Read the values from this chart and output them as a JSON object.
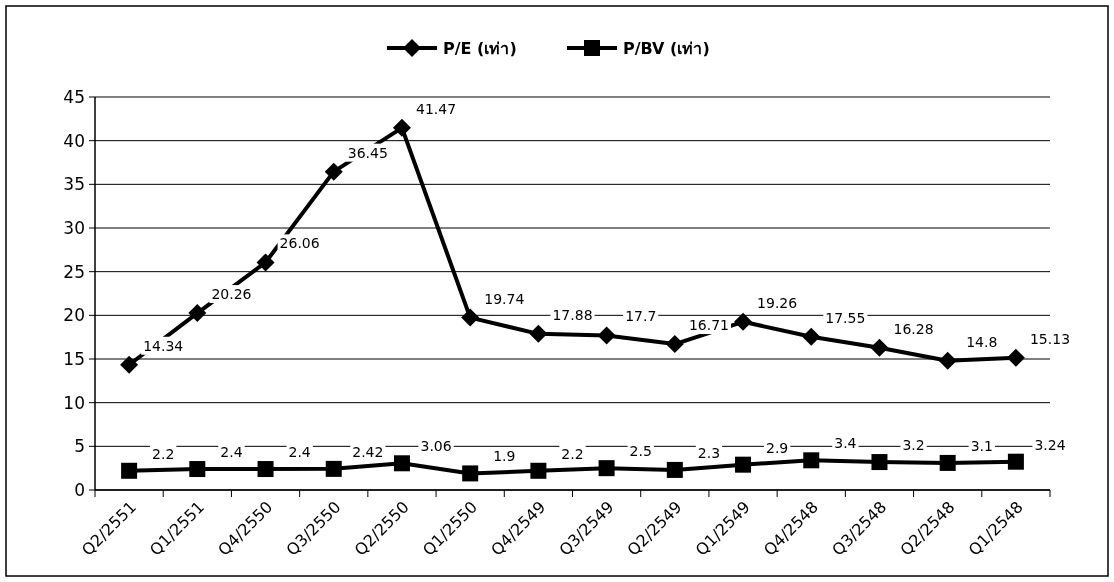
{
  "chart_data": {
    "type": "line",
    "categories": [
      "Q2/2551",
      "Q1/2551",
      "Q4/2550",
      "Q3/2550",
      "Q2/2550",
      "Q1/2550",
      "Q4/2549",
      "Q3/2549",
      "Q2/2549",
      "Q1/2549",
      "Q4/2548",
      "Q3/2548",
      "Q2/2548",
      "Q1/2548"
    ],
    "series": [
      {
        "name": "P/E (เท่า)",
        "color": "#000000",
        "marker": "diamond",
        "values": [
          14.34,
          20.26,
          26.06,
          36.45,
          41.47,
          19.74,
          17.88,
          17.7,
          16.71,
          19.26,
          17.55,
          16.28,
          14.8,
          15.13
        ]
      },
      {
        "name": "P/BV (เท่า)",
        "color": "#000000",
        "marker": "square",
        "values": [
          2.2,
          2.4,
          2.4,
          2.42,
          3.06,
          1.9,
          2.2,
          2.5,
          2.3,
          2.9,
          3.4,
          3.2,
          3.1,
          3.24
        ]
      }
    ],
    "ylim": [
      0,
      45
    ],
    "yticks": [
      0,
      5,
      10,
      15,
      20,
      25,
      30,
      35,
      40,
      45
    ],
    "grid": "y",
    "legend": "top",
    "data_labels": true
  }
}
